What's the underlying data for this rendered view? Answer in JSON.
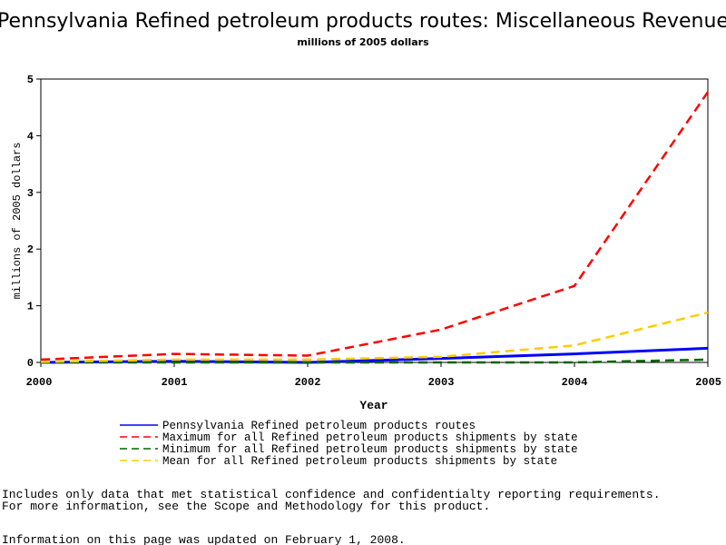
{
  "chart_data": {
    "type": "line",
    "title": "Pennsylvania Refined petroleum products routes: Miscellaneous Revenue",
    "subtitle": "millions of 2005 dollars",
    "xlabel": "Year",
    "ylabel": "millions of 2005 dollars",
    "xlim": [
      2000,
      2005
    ],
    "ylim": [
      0,
      5
    ],
    "x_ticks": [
      "2000",
      "2001",
      "2002",
      "2003",
      "2004",
      "2005"
    ],
    "y_ticks": [
      "0",
      "1",
      "2",
      "3",
      "4",
      "5"
    ],
    "grid": false,
    "legend_position": "bottom",
    "x": [
      2000,
      2001,
      2002,
      2003,
      2004,
      2005
    ],
    "series": [
      {
        "name": "Pennsylvania Refined petroleum products routes",
        "values": [
          0.0,
          0.02,
          0.0,
          0.07,
          0.15,
          0.25
        ],
        "color": "#0000ff",
        "style": "solid"
      },
      {
        "name": "Maximum for all Refined petroleum products shipments by state",
        "values": [
          0.05,
          0.15,
          0.12,
          0.58,
          1.35,
          4.77
        ],
        "color": "#ff0000",
        "style": "dashed"
      },
      {
        "name": "Minimum for all Refined petroleum products shipments by state",
        "values": [
          0.0,
          0.0,
          0.0,
          0.0,
          0.0,
          0.05
        ],
        "color": "#006400",
        "style": "dashed"
      },
      {
        "name": "Mean for all Refined petroleum products shipments by state",
        "values": [
          0.01,
          0.05,
          0.05,
          0.1,
          0.3,
          0.88
        ],
        "color": "#ffcc00",
        "style": "dashed"
      }
    ]
  },
  "footnote": {
    "line1": "Includes only data that met statistical confidence and confidentialty reporting requirements.",
    "line2": "For more information, see the Scope and Methodology for this product.",
    "updated": "Information on this page was updated on February 1, 2008."
  }
}
